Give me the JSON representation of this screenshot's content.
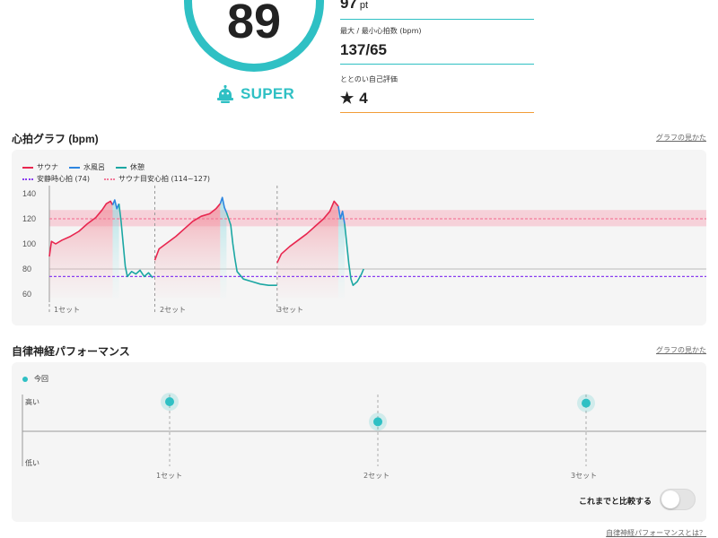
{
  "summary": {
    "score": "89",
    "rank": "SUPER",
    "stats": [
      {
        "label": "",
        "value": "97",
        "unit": "pt"
      },
      {
        "label": "最大 / 最小心拍数 (bpm)",
        "value": "137/65"
      },
      {
        "label": "ととのい自己評価",
        "value": "4",
        "icon": "star-icon"
      }
    ]
  },
  "heart_rate": {
    "title": "心拍グラフ (bpm)",
    "help_link": "グラフの見かた",
    "legend": [
      {
        "label": "サウナ",
        "color": "#e8264f"
      },
      {
        "label": "水風呂",
        "color": "#2e86e0"
      },
      {
        "label": "休憩",
        "color": "#1ba7a3"
      },
      {
        "label": "安静時心拍 (74)",
        "color": "#8a3ef0"
      },
      {
        "label": "サウナ目安心拍 (114~127)",
        "color": "#f27b9a"
      }
    ],
    "sets": [
      "1セット",
      "2セット",
      "3セット"
    ]
  },
  "chart_data": {
    "type": "line",
    "xlabel": "",
    "ylabel": "",
    "ylim": [
      55,
      145
    ],
    "yticks": [
      60,
      80,
      100,
      120,
      140
    ],
    "resting_hr": 74,
    "target_zone": [
      114,
      127
    ],
    "max": 137,
    "min": 65,
    "series": [
      {
        "name": "サウナ",
        "color": "#e8264f",
        "values": [
          [
            0,
            90
          ],
          [
            0.5,
            102
          ],
          [
            1.5,
            100
          ],
          [
            3,
            103
          ],
          [
            5,
            106
          ],
          [
            7,
            110
          ],
          [
            9,
            116
          ],
          [
            11,
            121
          ],
          [
            12.5,
            127
          ],
          [
            13.5,
            132
          ],
          [
            14.5,
            134
          ],
          [
            15,
            131
          ]
        ]
      },
      {
        "name": "水風呂",
        "color": "#2e86e0",
        "values": [
          [
            15,
            131
          ],
          [
            15.5,
            135
          ],
          [
            16,
            128
          ],
          [
            16.5,
            132
          ]
        ]
      },
      {
        "name": "休憩",
        "color": "#1ba7a3",
        "values": [
          [
            16.5,
            132
          ],
          [
            17,
            118
          ],
          [
            17.5,
            100
          ],
          [
            18,
            82
          ],
          [
            18.5,
            74
          ],
          [
            19.5,
            78
          ],
          [
            20.5,
            76
          ],
          [
            21.5,
            79
          ],
          [
            22.5,
            74
          ],
          [
            23.5,
            77
          ],
          [
            24.5,
            73
          ]
        ]
      },
      {
        "name": "サウナ",
        "color": "#e8264f",
        "values": [
          [
            25,
            87
          ],
          [
            26,
            96
          ],
          [
            28,
            101
          ],
          [
            30,
            106
          ],
          [
            32,
            112
          ],
          [
            34,
            118
          ],
          [
            36,
            122
          ],
          [
            38,
            124
          ],
          [
            39.5,
            128
          ],
          [
            40.5,
            132
          ]
        ]
      },
      {
        "name": "水風呂",
        "color": "#2e86e0",
        "values": [
          [
            40.5,
            132
          ],
          [
            41,
            137
          ],
          [
            41.5,
            129
          ],
          [
            42,
            125
          ]
        ]
      },
      {
        "name": "休憩",
        "color": "#1ba7a3",
        "values": [
          [
            42,
            125
          ],
          [
            43,
            115
          ],
          [
            43.5,
            100
          ],
          [
            44,
            88
          ],
          [
            44.5,
            78
          ],
          [
            46,
            72
          ],
          [
            48,
            70
          ],
          [
            50,
            68
          ],
          [
            52,
            67
          ],
          [
            54,
            67
          ]
        ]
      },
      {
        "name": "サウナ",
        "color": "#e8264f",
        "values": [
          [
            54,
            85
          ],
          [
            55,
            92
          ],
          [
            57,
            98
          ],
          [
            59,
            103
          ],
          [
            61,
            108
          ],
          [
            63,
            114
          ],
          [
            65,
            120
          ],
          [
            66.5,
            126
          ],
          [
            67.5,
            134
          ],
          [
            68.5,
            130
          ]
        ]
      },
      {
        "name": "水風呂",
        "color": "#2e86e0",
        "values": [
          [
            68.5,
            130
          ],
          [
            69,
            120
          ],
          [
            69.5,
            126
          ],
          [
            70,
            116
          ]
        ]
      },
      {
        "name": "休憩",
        "color": "#1ba7a3",
        "values": [
          [
            70,
            116
          ],
          [
            70.5,
            100
          ],
          [
            71,
            84
          ],
          [
            71.5,
            72
          ],
          [
            72,
            67
          ],
          [
            73,
            70
          ],
          [
            74,
            76
          ],
          [
            74.5,
            80
          ]
        ]
      }
    ]
  },
  "autonomic": {
    "title": "自律神経パフォーマンス",
    "help_link": "グラフの見かた",
    "legend": "今回",
    "y_high": "高い",
    "y_low": "低い",
    "sets": [
      "1セット",
      "2セット",
      "3セット"
    ],
    "points": [
      0.9,
      0.62,
      0.88
    ],
    "compare_label": "これまでと比較する",
    "compare_on": false,
    "footer_link": "自律神経パフォーマンスとは？"
  }
}
